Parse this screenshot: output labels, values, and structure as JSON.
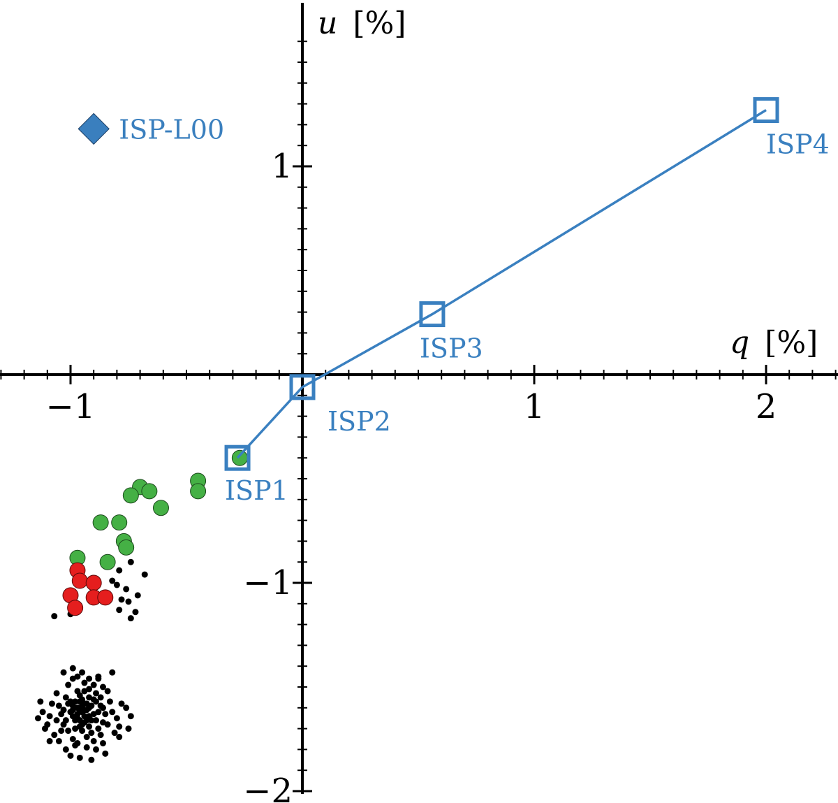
{
  "chart_data": {
    "type": "scatter",
    "xlabel": {
      "var": "q",
      "unit": "[%]"
    },
    "ylabel": {
      "var": "u",
      "unit": "[%]"
    },
    "xlim": [
      -1.3,
      2.3
    ],
    "ylim": [
      -2.05,
      1.62
    ],
    "x_ticks": [
      {
        "value": -1,
        "label": "−1"
      },
      {
        "value": 1,
        "label": "1"
      },
      {
        "value": 2,
        "label": "2"
      }
    ],
    "y_ticks": [
      {
        "value": 1,
        "label": "1"
      },
      {
        "value": -1,
        "label": "−1"
      },
      {
        "value": -2,
        "label": "−2"
      }
    ],
    "grid": false,
    "isp_line": {
      "color": "#3a80c0",
      "points": [
        {
          "label": "ISP1",
          "x": -0.28,
          "y": -0.4
        },
        {
          "label": "ISP2",
          "x": 0.0,
          "y": -0.06
        },
        {
          "label": "ISP3",
          "x": 0.56,
          "y": 0.29
        },
        {
          "label": "ISP4",
          "x": 2.0,
          "y": 1.27
        }
      ]
    },
    "isp_l00": {
      "label": "ISP-L00",
      "x": -0.9,
      "y": 1.18,
      "color": "#3a7fbe"
    },
    "series": [
      {
        "color": "#45b045",
        "points": [
          [
            -0.27,
            -0.4
          ],
          [
            -0.45,
            -0.51
          ],
          [
            -0.45,
            -0.56
          ],
          [
            -0.7,
            -0.54
          ],
          [
            -0.66,
            -0.56
          ],
          [
            -0.74,
            -0.58
          ],
          [
            -0.61,
            -0.64
          ],
          [
            -0.79,
            -0.71
          ],
          [
            -0.87,
            -0.71
          ],
          [
            -0.77,
            -0.8
          ],
          [
            -0.76,
            -0.83
          ],
          [
            -0.97,
            -0.88
          ],
          [
            -0.84,
            -0.9
          ]
        ]
      },
      {
        "color": "#e51e1e",
        "points": [
          [
            -0.97,
            -0.94
          ],
          [
            -0.96,
            -0.99
          ],
          [
            -0.9,
            -1.0
          ],
          [
            -1.0,
            -1.06
          ],
          [
            -0.9,
            -1.07
          ],
          [
            -0.85,
            -1.07
          ],
          [
            -0.98,
            -1.12
          ]
        ]
      },
      {
        "color": "#000000",
        "points": [
          [
            -1.05,
            -1.59
          ],
          [
            -0.94,
            -1.48
          ],
          [
            -0.96,
            -1.61
          ],
          [
            -0.9,
            -1.56
          ],
          [
            -0.99,
            -1.64
          ],
          [
            -0.93,
            -1.66
          ],
          [
            -0.88,
            -1.62
          ],
          [
            -1.01,
            -1.58
          ],
          [
            -0.91,
            -1.72
          ],
          [
            -0.97,
            -1.52
          ],
          [
            -0.86,
            -1.67
          ],
          [
            -1.03,
            -1.68
          ],
          [
            -0.95,
            -1.56
          ],
          [
            -0.92,
            -1.6
          ],
          [
            -0.98,
            -1.7
          ],
          [
            -0.89,
            -1.53
          ],
          [
            -1.0,
            -1.62
          ],
          [
            -0.94,
            -1.64
          ],
          [
            -0.96,
            -1.54
          ],
          [
            -0.87,
            -1.59
          ],
          [
            -1.02,
            -1.55
          ],
          [
            -0.93,
            -1.58
          ],
          [
            -0.99,
            -1.75
          ],
          [
            -0.9,
            -1.63
          ],
          [
            -0.95,
            -1.68
          ],
          [
            -0.97,
            -1.6
          ],
          [
            -0.88,
            -1.7
          ],
          [
            -1.04,
            -1.63
          ],
          [
            -0.92,
            -1.51
          ],
          [
            -0.96,
            -1.66
          ],
          [
            -1.0,
            -1.57
          ],
          [
            -0.91,
            -1.66
          ],
          [
            -0.94,
            -1.61
          ],
          [
            -0.85,
            -1.63
          ],
          [
            -0.98,
            -1.57
          ],
          [
            -1.06,
            -1.66
          ],
          [
            -0.93,
            -1.74
          ],
          [
            -0.89,
            -1.57
          ],
          [
            -0.97,
            -1.63
          ],
          [
            -1.01,
            -1.71
          ],
          [
            -0.95,
            -1.59
          ],
          [
            -0.92,
            -1.69
          ],
          [
            -0.9,
            -1.49
          ],
          [
            -0.96,
            -1.57
          ],
          [
            -0.99,
            -1.61
          ],
          [
            -0.87,
            -1.55
          ],
          [
            -1.03,
            -1.61
          ],
          [
            -0.94,
            -1.67
          ],
          [
            -0.82,
            -1.62
          ],
          [
            -0.84,
            -1.68
          ],
          [
            -0.83,
            -1.57
          ],
          [
            -0.8,
            -1.65
          ],
          [
            -0.78,
            -1.58
          ],
          [
            -0.81,
            -1.72
          ],
          [
            -0.79,
            -1.69
          ],
          [
            -1.08,
            -1.58
          ],
          [
            -1.12,
            -1.62
          ],
          [
            -1.1,
            -1.68
          ],
          [
            -1.07,
            -1.73
          ],
          [
            -1.13,
            -1.57
          ],
          [
            -1.09,
            -1.64
          ],
          [
            -1.11,
            -1.7
          ],
          [
            -0.86,
            -1.77
          ],
          [
            -0.89,
            -1.8
          ],
          [
            -0.93,
            -1.79
          ],
          [
            -0.98,
            -1.78
          ],
          [
            -1.02,
            -1.8
          ],
          [
            -0.96,
            -1.84
          ],
          [
            -0.91,
            -1.85
          ],
          [
            -0.85,
            -1.82
          ],
          [
            -1.05,
            -1.76
          ],
          [
            -1.0,
            -1.83
          ],
          [
            -0.97,
            -1.45
          ],
          [
            -0.95,
            -1.43
          ],
          [
            -0.92,
            -1.46
          ],
          [
            -0.99,
            -1.46
          ],
          [
            -1.01,
            -1.49
          ],
          [
            -0.88,
            -1.46
          ],
          [
            -0.94,
            -1.52
          ],
          [
            -0.86,
            -1.5
          ],
          [
            -0.84,
            -1.52
          ],
          [
            -1.06,
            -1.53
          ],
          [
            -0.97,
            -1.77
          ],
          [
            -0.9,
            -1.76
          ],
          [
            -0.87,
            -1.73
          ],
          [
            -1.04,
            -1.71
          ],
          [
            -0.92,
            -1.64
          ],
          [
            -0.95,
            -1.62
          ],
          [
            -0.98,
            -1.66
          ],
          [
            -0.93,
            -1.61
          ],
          [
            -0.96,
            -1.69
          ],
          [
            -0.91,
            -1.59
          ],
          [
            -0.99,
            -1.59
          ],
          [
            -0.94,
            -1.58
          ],
          [
            -0.97,
            -1.65
          ],
          [
            -1.02,
            -1.66
          ],
          [
            -0.89,
            -1.66
          ],
          [
            -0.86,
            -1.6
          ],
          [
            -0.95,
            -1.71
          ],
          [
            -0.92,
            -1.55
          ],
          [
            -0.74,
            -0.9
          ],
          [
            -0.79,
            -0.94
          ],
          [
            -0.68,
            -0.96
          ],
          [
            -0.82,
            -0.99
          ],
          [
            -0.76,
            -1.03
          ],
          [
            -0.71,
            -1.06
          ],
          [
            -0.75,
            -1.09
          ],
          [
            -0.72,
            -1.14
          ],
          [
            -0.79,
            -1.13
          ],
          [
            -0.74,
            -1.17
          ],
          [
            -1.07,
            -1.16
          ],
          [
            -1.0,
            -1.15
          ],
          [
            -0.8,
            -1.01
          ],
          [
            -0.78,
            -1.08
          ],
          [
            -0.88,
            -1.45
          ],
          [
            -0.99,
            -1.41
          ],
          [
            -1.03,
            -1.43
          ],
          [
            -0.82,
            -1.43
          ],
          [
            -0.79,
            -1.74
          ],
          [
            -1.09,
            -1.76
          ],
          [
            -0.75,
            -1.7
          ],
          [
            -0.74,
            -1.64
          ],
          [
            -0.76,
            -1.6
          ],
          [
            -1.14,
            -1.65
          ]
        ]
      }
    ]
  }
}
